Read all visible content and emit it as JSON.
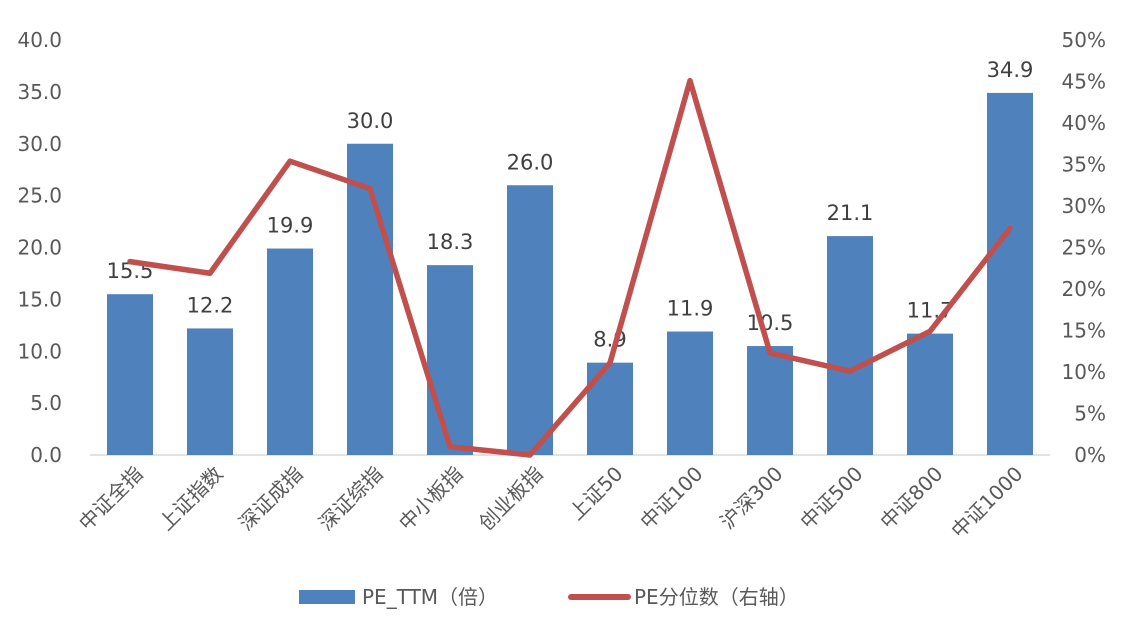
{
  "chart_data": {
    "type": "bar+line",
    "title": "",
    "categories": [
      "中证全指",
      "上证指数",
      "深证成指",
      "深证综指",
      "中小板指",
      "创业板指",
      "上证50",
      "中证100",
      "沪深300",
      "中证500",
      "中证800",
      "中证1000"
    ],
    "series": [
      {
        "name": "PE_TTM（倍）",
        "type": "bar",
        "axis": "left",
        "values": [
          15.5,
          12.2,
          19.9,
          30.0,
          18.3,
          26.0,
          8.9,
          11.9,
          10.5,
          21.1,
          11.7,
          34.9
        ],
        "labels": [
          "15.5",
          "12.2",
          "19.9",
          "30.0",
          "18.3",
          "26.0",
          "8.9",
          "11.9",
          "10.5",
          "21.1",
          "11.7",
          "34.9"
        ]
      },
      {
        "name": "PE分位数（右轴）",
        "type": "line",
        "axis": "right",
        "values": [
          0.233,
          0.219,
          0.354,
          0.321,
          0.01,
          0.0,
          0.111,
          0.451,
          0.123,
          0.101,
          0.149,
          0.273
        ]
      }
    ],
    "left_axis": {
      "ylim": [
        0,
        40
      ],
      "ticks": [
        0,
        5,
        10,
        15,
        20,
        25,
        30,
        35,
        40
      ],
      "tick_labels": [
        "0.0",
        "5.0",
        "10.0",
        "15.0",
        "20.0",
        "25.0",
        "30.0",
        "35.0",
        "40.0"
      ]
    },
    "right_axis": {
      "ylim": [
        0,
        0.5
      ],
      "ticks": [
        0,
        0.05,
        0.1,
        0.15,
        0.2,
        0.25,
        0.3,
        0.35,
        0.4,
        0.45,
        0.5
      ],
      "tick_labels": [
        "0%",
        "5%",
        "10%",
        "15%",
        "20%",
        "25%",
        "30%",
        "35%",
        "40%",
        "45%",
        "50%"
      ]
    },
    "grid": false,
    "legend_position": "bottom",
    "colors": {
      "bar": "#4F81BD",
      "line": "#C0504D",
      "axis": "#D9D9D9",
      "text": "#595959"
    }
  }
}
